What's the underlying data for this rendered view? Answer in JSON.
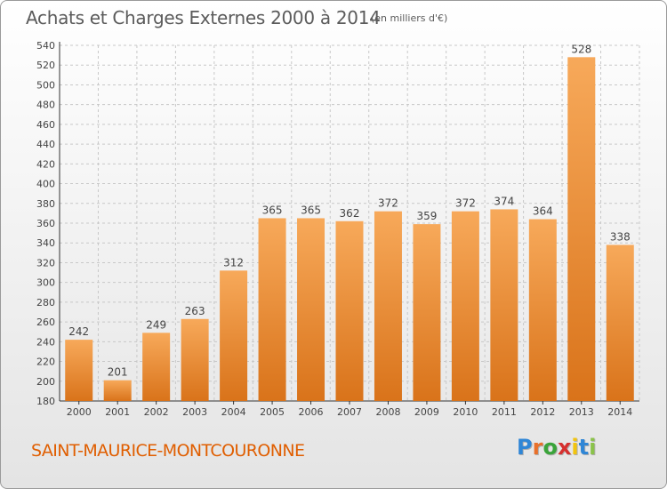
{
  "header": {
    "title": "Achats et Charges Externes 2000 à 2014",
    "subtitle": "(en milliers d'€)"
  },
  "footer": {
    "commune": "SAINT-MAURICE-MONTCOURONNE",
    "logo_text": "Proxiti"
  },
  "colors": {
    "bar_top": "#f7a95a",
    "bar_bottom": "#d9731a",
    "commune_text": "#e05e00",
    "grid": "#c8c8c8"
  },
  "chart_data": {
    "type": "bar",
    "title": "Achats et Charges Externes 2000 à 2014",
    "subtitle": "(en milliers d'€)",
    "categories": [
      "2000",
      "2001",
      "2002",
      "2003",
      "2004",
      "2005",
      "2006",
      "2007",
      "2008",
      "2009",
      "2010",
      "2011",
      "2012",
      "2013",
      "2014"
    ],
    "values": [
      242,
      201,
      249,
      263,
      312,
      365,
      365,
      362,
      372,
      359,
      372,
      374,
      364,
      528,
      338
    ],
    "ylim": [
      180,
      540
    ],
    "yticks": [
      180,
      200,
      220,
      240,
      260,
      280,
      300,
      320,
      340,
      360,
      380,
      400,
      420,
      440,
      460,
      480,
      500,
      520,
      540
    ],
    "grid": true,
    "xlabel": "",
    "ylabel": ""
  }
}
